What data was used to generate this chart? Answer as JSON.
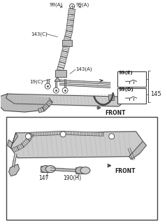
{
  "bg_color": "#ffffff",
  "line_color": "#444444",
  "text_color": "#222222",
  "gray_fill": "#cccccc",
  "light_gray": "#e8e8e8",
  "figsize": [
    2.39,
    3.2
  ],
  "dpi": 100,
  "labels": {
    "99A_left": "99(A)",
    "99A_right": "99(A)",
    "143C": "143(C)",
    "143A": "143(A)",
    "19C": "19(C)",
    "99E": "99(E)",
    "99D": "99(D)",
    "145": "145",
    "front1": "FRONT",
    "147": "147",
    "190H": "190(H)",
    "front2": "FRONT"
  }
}
